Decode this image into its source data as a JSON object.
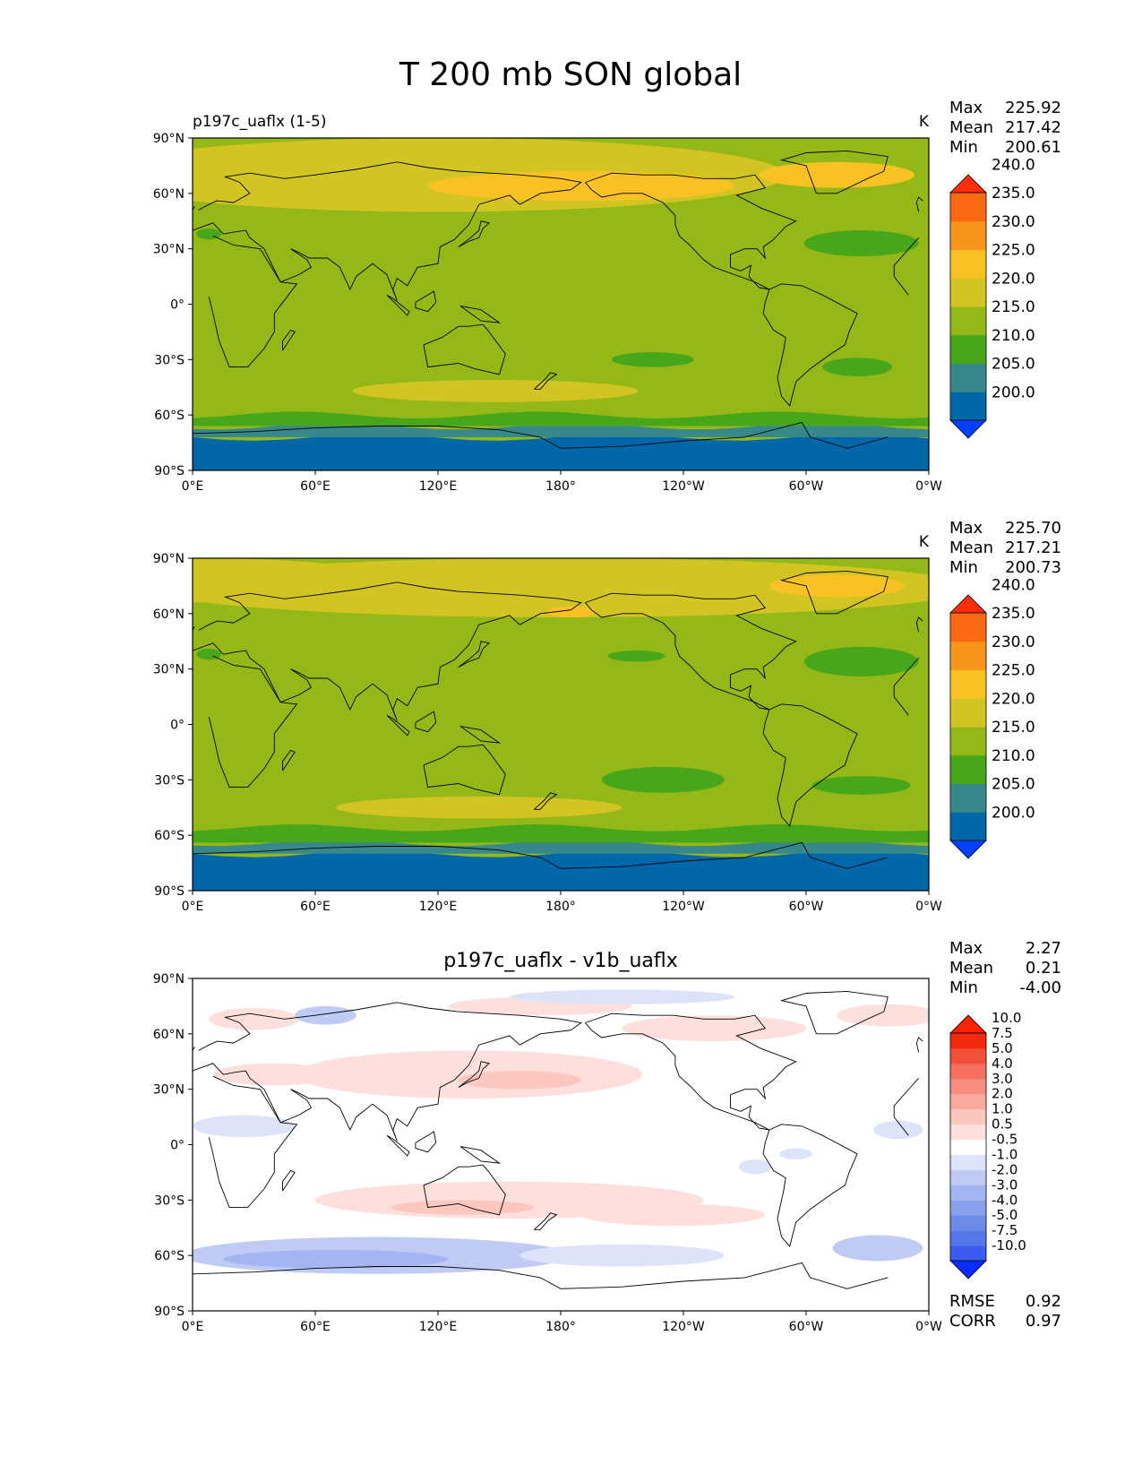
{
  "figure": {
    "title": "T 200 mb SON global"
  },
  "chart_data": [
    {
      "type": "heatmap",
      "subtitle_left": "p197c_uaflx (1-5)",
      "subtitle_center": "",
      "units": "K",
      "stats": [
        {
          "label": "Max",
          "value": "225.92"
        },
        {
          "label": "Mean",
          "value": "217.42"
        },
        {
          "label": "Min",
          "value": "200.61"
        }
      ],
      "extra_stats": [],
      "x_ticks": [
        "0°E",
        "60°E",
        "120°E",
        "180°",
        "120°W",
        "60°W",
        "0°W"
      ],
      "y_ticks": [
        "90°N",
        "60°N",
        "30°N",
        "0°",
        "30°S",
        "60°S",
        "90°S"
      ],
      "x_range": [
        0,
        360
      ],
      "y_range": [
        -90,
        90
      ],
      "colorbar": {
        "levels": [
          "200.0",
          "205.0",
          "210.0",
          "215.0",
          "220.0",
          "225.0",
          "230.0",
          "235.0",
          "240.0"
        ],
        "colors": [
          "#0040ff",
          "#0068a8",
          "#36888a",
          "#47a61a",
          "#94b818",
          "#d2c523",
          "#f9c224",
          "#f8961b",
          "#fc6913",
          "#ff2d08"
        ]
      },
      "fields": {
        "base": 4,
        "bands": [
          {
            "lat_from": -90,
            "lat_to": -72,
            "level": 1
          },
          {
            "lat_from": -72,
            "lat_to": -66,
            "level": 2
          },
          {
            "lat_from": -66,
            "lat_to": -60,
            "level": 3
          }
        ],
        "blobs": [
          {
            "lon": 120,
            "lat": 70,
            "rlon": 170,
            "rlat": 20,
            "level": 5
          },
          {
            "lon": 190,
            "lat": 64,
            "rlon": 75,
            "rlat": 8,
            "level": 6
          },
          {
            "lon": 315,
            "lat": 70,
            "rlon": 38,
            "rlat": 7,
            "level": 6
          },
          {
            "lon": 148,
            "lat": -47,
            "rlon": 70,
            "rlat": 6,
            "level": 5
          },
          {
            "lon": 225,
            "lat": -30,
            "rlon": 20,
            "rlat": 4,
            "level": 3
          },
          {
            "lon": 325,
            "lat": -34,
            "rlon": 17,
            "rlat": 5,
            "level": 3
          },
          {
            "lon": 327,
            "lat": 33,
            "rlon": 28,
            "rlat": 7,
            "level": 3
          },
          {
            "lon": 8,
            "lat": 38,
            "rlon": 6,
            "rlat": 3,
            "level": 3
          }
        ]
      }
    },
    {
      "type": "heatmap",
      "subtitle_left": "",
      "subtitle_center": "",
      "units": "K",
      "stats": [
        {
          "label": "Max",
          "value": "225.70"
        },
        {
          "label": "Mean",
          "value": "217.21"
        },
        {
          "label": "Min",
          "value": "200.73"
        }
      ],
      "extra_stats": [],
      "x_ticks": [
        "0°E",
        "60°E",
        "120°E",
        "180°",
        "120°W",
        "60°W",
        "0°W"
      ],
      "y_ticks": [
        "90°N",
        "60°N",
        "30°N",
        "0°",
        "30°S",
        "60°S",
        "90°S"
      ],
      "x_range": [
        0,
        360
      ],
      "y_range": [
        -90,
        90
      ],
      "colorbar": {
        "levels": [
          "200.0",
          "205.0",
          "210.0",
          "215.0",
          "220.0",
          "225.0",
          "230.0",
          "235.0",
          "240.0"
        ],
        "colors": [
          "#0040ff",
          "#0068a8",
          "#36888a",
          "#47a61a",
          "#94b818",
          "#d2c523",
          "#f9c224",
          "#f8961b",
          "#fc6913",
          "#ff2d08"
        ]
      },
      "fields": {
        "base": 4,
        "bands": [
          {
            "lat_from": -90,
            "lat_to": -70,
            "level": 1
          },
          {
            "lat_from": -70,
            "lat_to": -64,
            "level": 2
          },
          {
            "lat_from": -64,
            "lat_to": -56,
            "level": 3
          }
        ],
        "blobs": [
          {
            "lon": 180,
            "lat": 74,
            "rlon": 200,
            "rlat": 16,
            "level": 5
          },
          {
            "lon": 0,
            "lat": 78,
            "rlon": 100,
            "rlat": 12,
            "level": 5
          },
          {
            "lon": 315,
            "lat": 75,
            "rlon": 33,
            "rlat": 6,
            "level": 6
          },
          {
            "lon": 185,
            "lat": 61,
            "rlon": 12,
            "rlat": 3,
            "level": 6
          },
          {
            "lon": 140,
            "lat": -45,
            "rlon": 70,
            "rlat": 6,
            "level": 5
          },
          {
            "lon": 230,
            "lat": -30,
            "rlon": 30,
            "rlat": 7,
            "level": 3
          },
          {
            "lon": 327,
            "lat": -33,
            "rlon": 24,
            "rlat": 5,
            "level": 3
          },
          {
            "lon": 327,
            "lat": 34,
            "rlon": 28,
            "rlat": 8,
            "level": 3
          },
          {
            "lon": 217,
            "lat": 37,
            "rlon": 14,
            "rlat": 3,
            "level": 3
          },
          {
            "lon": 8,
            "lat": 38,
            "rlon": 6,
            "rlat": 3,
            "level": 3
          }
        ]
      }
    },
    {
      "type": "heatmap",
      "subtitle_left": "",
      "subtitle_center": "p197c_uaflx - v1b_uaflx",
      "units": "",
      "stats": [
        {
          "label": "Max",
          "value": "2.27"
        },
        {
          "label": "Mean",
          "value": "0.21"
        },
        {
          "label": "Min",
          "value": "-4.00"
        }
      ],
      "extra_stats": [
        {
          "label": "RMSE",
          "value": "0.92"
        },
        {
          "label": "CORR",
          "value": "0.97"
        }
      ],
      "x_ticks": [
        "0°E",
        "60°E",
        "120°E",
        "180°",
        "120°W",
        "60°W",
        "0°W"
      ],
      "y_ticks": [
        "90°N",
        "60°N",
        "30°N",
        "0°",
        "30°S",
        "60°S",
        "90°S"
      ],
      "x_range": [
        0,
        360
      ],
      "y_range": [
        -90,
        90
      ],
      "colorbar": {
        "levels": [
          "-10.0",
          "-7.5",
          "-5.0",
          "-4.0",
          "-3.0",
          "-2.0",
          "-1.0",
          "-0.5",
          "0.5",
          "1.0",
          "2.0",
          "3.0",
          "4.0",
          "5.0",
          "7.5",
          "10.0"
        ],
        "colors": [
          "#0b2cff",
          "#3c5cf0",
          "#5677ea",
          "#6e8ae8",
          "#8ba0ec",
          "#a4b6f1",
          "#bfcbf5",
          "#dde4fa",
          "#ffffff",
          "#fde0dc",
          "#fbc7bf",
          "#f9a99d",
          "#f68e80",
          "#f4705f",
          "#f24f38",
          "#f22a0d",
          "#ff2200"
        ]
      },
      "fields": {
        "base": 8,
        "bands": [],
        "blobs": [
          {
            "lon": 135,
            "lat": 38,
            "rlon": 85,
            "rlat": 13,
            "level": 9
          },
          {
            "lon": 160,
            "lat": 35,
            "rlon": 30,
            "rlat": 5,
            "level": 10
          },
          {
            "lon": 40,
            "lat": 38,
            "rlon": 30,
            "rlat": 6,
            "level": 9
          },
          {
            "lon": 30,
            "lat": 68,
            "rlon": 22,
            "rlat": 6,
            "level": 9
          },
          {
            "lon": 155,
            "lat": -30,
            "rlon": 95,
            "rlat": 10,
            "level": 9
          },
          {
            "lon": 132,
            "lat": -34,
            "rlon": 35,
            "rlat": 4,
            "level": 10
          },
          {
            "lon": 235,
            "lat": -38,
            "rlon": 45,
            "rlat": 6,
            "level": 9
          },
          {
            "lon": 255,
            "lat": 63,
            "rlon": 45,
            "rlat": 7,
            "level": 9
          },
          {
            "lon": 340,
            "lat": 70,
            "rlon": 25,
            "rlat": 6,
            "level": 9
          },
          {
            "lon": 170,
            "lat": 75,
            "rlon": 45,
            "rlat": 5,
            "level": 9
          },
          {
            "lon": 90,
            "lat": -60,
            "rlon": 95,
            "rlat": 10,
            "level": 6
          },
          {
            "lon": 70,
            "lat": -62,
            "rlon": 55,
            "rlat": 5,
            "level": 5
          },
          {
            "lon": 210,
            "lat": -60,
            "rlon": 50,
            "rlat": 6,
            "level": 7
          },
          {
            "lon": 335,
            "lat": -56,
            "rlon": 22,
            "rlat": 7,
            "level": 6
          },
          {
            "lon": 25,
            "lat": 10,
            "rlon": 25,
            "rlat": 6,
            "level": 7
          },
          {
            "lon": 275,
            "lat": -12,
            "rlon": 8,
            "rlat": 4,
            "level": 7
          },
          {
            "lon": 295,
            "lat": -5,
            "rlon": 8,
            "rlat": 3,
            "level": 7
          },
          {
            "lon": 345,
            "lat": 8,
            "rlon": 12,
            "rlat": 5,
            "level": 7
          },
          {
            "lon": 65,
            "lat": 70,
            "rlon": 15,
            "rlat": 5,
            "level": 6
          },
          {
            "lon": 210,
            "lat": 80,
            "rlon": 55,
            "rlat": 4,
            "level": 7
          }
        ]
      }
    }
  ]
}
